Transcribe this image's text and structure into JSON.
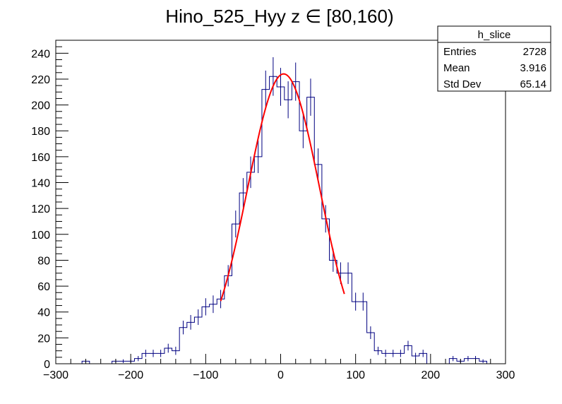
{
  "chart_data": {
    "type": "histogram",
    "title": "Hino_525_Hyy z  ∈ [80,160)",
    "xlabel": "",
    "ylabel": "",
    "xlim": [
      -300,
      300
    ],
    "ylim": [
      0,
      250
    ],
    "x_ticks": [
      -300,
      -200,
      -100,
      0,
      100,
      200,
      300
    ],
    "y_ticks": [
      0,
      20,
      40,
      60,
      80,
      100,
      120,
      140,
      160,
      180,
      200,
      220,
      240
    ],
    "bin_width": 10,
    "bins": [
      {
        "x": -260,
        "y": 2
      },
      {
        "x": -250,
        "y": 0
      },
      {
        "x": -240,
        "y": 0
      },
      {
        "x": -230,
        "y": 0
      },
      {
        "x": -220,
        "y": 2
      },
      {
        "x": -210,
        "y": 2
      },
      {
        "x": -200,
        "y": 2
      },
      {
        "x": -190,
        "y": 4
      },
      {
        "x": -180,
        "y": 8
      },
      {
        "x": -170,
        "y": 8
      },
      {
        "x": -160,
        "y": 8
      },
      {
        "x": -150,
        "y": 12
      },
      {
        "x": -140,
        "y": 10
      },
      {
        "x": -130,
        "y": 28
      },
      {
        "x": -120,
        "y": 32
      },
      {
        "x": -110,
        "y": 36
      },
      {
        "x": -100,
        "y": 44
      },
      {
        "x": -90,
        "y": 46
      },
      {
        "x": -80,
        "y": 50
      },
      {
        "x": -70,
        "y": 68
      },
      {
        "x": -60,
        "y": 108
      },
      {
        "x": -50,
        "y": 132
      },
      {
        "x": -40,
        "y": 148
      },
      {
        "x": -30,
        "y": 160
      },
      {
        "x": -20,
        "y": 212
      },
      {
        "x": -10,
        "y": 222
      },
      {
        "x": 0,
        "y": 214
      },
      {
        "x": 10,
        "y": 204
      },
      {
        "x": 20,
        "y": 218
      },
      {
        "x": 30,
        "y": 180
      },
      {
        "x": 40,
        "y": 206
      },
      {
        "x": 50,
        "y": 154
      },
      {
        "x": 60,
        "y": 112
      },
      {
        "x": 70,
        "y": 80
      },
      {
        "x": 80,
        "y": 70
      },
      {
        "x": 90,
        "y": 70
      },
      {
        "x": 100,
        "y": 48
      },
      {
        "x": 110,
        "y": 48
      },
      {
        "x": 120,
        "y": 24
      },
      {
        "x": 130,
        "y": 10
      },
      {
        "x": 140,
        "y": 8
      },
      {
        "x": 150,
        "y": 8
      },
      {
        "x": 160,
        "y": 8
      },
      {
        "x": 170,
        "y": 14
      },
      {
        "x": 180,
        "y": 6
      },
      {
        "x": 190,
        "y": 8
      },
      {
        "x": 200,
        "y": 0
      },
      {
        "x": 210,
        "y": 0
      },
      {
        "x": 220,
        "y": 0
      },
      {
        "x": 230,
        "y": 4
      },
      {
        "x": 240,
        "y": 2
      },
      {
        "x": 250,
        "y": 4
      },
      {
        "x": 260,
        "y": 4
      },
      {
        "x": 270,
        "y": 2
      },
      {
        "x": 280,
        "y": 0
      }
    ],
    "fit": {
      "type": "gaussian",
      "range": [
        -80,
        85
      ],
      "amplitude": 224,
      "mean": 4,
      "sigma": 48,
      "color": "#ff0000"
    },
    "colors": {
      "histogram": "#000080",
      "errors": "#000080",
      "fit": "#ff0000"
    },
    "stats_box": {
      "name": "h_slice",
      "placement": "top-right",
      "rows": [
        {
          "label": "Entries",
          "value": "2728"
        },
        {
          "label": "Mean",
          "value": "3.916"
        },
        {
          "label": "Std Dev",
          "value": "65.14"
        }
      ]
    }
  }
}
